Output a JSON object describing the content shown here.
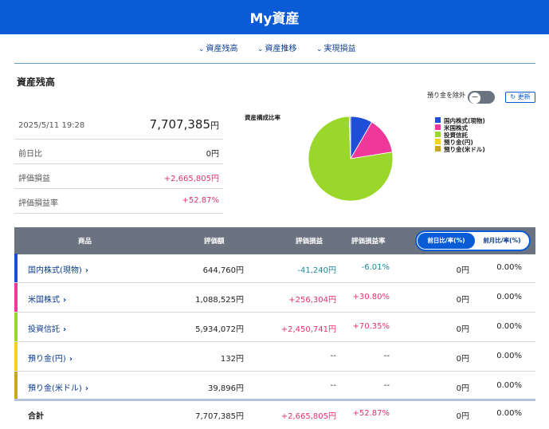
{
  "app": {
    "title": "My資産"
  },
  "subnav": [
    {
      "label": "資産残高"
    },
    {
      "label": "資産推移"
    },
    {
      "label": "実現損益"
    }
  ],
  "section_title": "資産残高",
  "controls": {
    "exclude_deposit_label": "預り金を除外",
    "refresh_label": "更新",
    "refresh_icon": "refresh-icon"
  },
  "summary": {
    "datetime": "2025/5/11 19:28",
    "total_number": "7,707,385",
    "total_unit": "円",
    "rows": [
      {
        "label": "前日比",
        "value": "0円"
      },
      {
        "label": "評価損益",
        "value": "+2,665,805円"
      },
      {
        "label": "評価損益率",
        "value": "+52.87%"
      }
    ]
  },
  "chart_data": {
    "type": "pie",
    "title": "資産構成比率",
    "categories": [
      "国内株式(現物)",
      "米国株式",
      "投資信託",
      "預り金(円)",
      "預り金(米ドル)"
    ],
    "values": [
      644760,
      1088525,
      5934072,
      132,
      39896
    ],
    "colors": [
      "#1f4fd8",
      "#f0389a",
      "#9ad72a",
      "#f2d21a",
      "#c8a718"
    ],
    "legend_position": "right"
  },
  "table": {
    "headers": [
      "商品",
      "評価額",
      "評価損益",
      "評価損益率"
    ],
    "toggle": {
      "active": "前日比/率(%)",
      "inactive": "前月比/率(%)"
    },
    "rows": [
      {
        "product": "国内株式(現物)",
        "value": "644,760円",
        "pl": "-41,240円",
        "rate": "-6.01%",
        "diff": "0円",
        "diff_rate": "0.00%",
        "color": "#1f4fd8",
        "sign": "neg"
      },
      {
        "product": "米国株式",
        "value": "1,088,525円",
        "pl": "+256,304円",
        "rate": "+30.80%",
        "diff": "0円",
        "diff_rate": "0.00%",
        "color": "#f0389a",
        "sign": "pos"
      },
      {
        "product": "投資信託",
        "value": "5,934,072円",
        "pl": "+2,450,741円",
        "rate": "+70.35%",
        "diff": "0円",
        "diff_rate": "0.00%",
        "color": "#9ad72a",
        "sign": "pos"
      },
      {
        "product": "預り金(円)",
        "value": "132円",
        "pl": "--",
        "rate": "--",
        "diff": "0円",
        "diff_rate": "0.00%",
        "color": "#f2d21a",
        "sign": "none"
      },
      {
        "product": "預り金(米ドル)",
        "value": "39,896円",
        "pl": "--",
        "rate": "--",
        "diff": "0円",
        "diff_rate": "0.00%",
        "color": "#c8a718",
        "sign": "none"
      }
    ],
    "total": {
      "label": "合計",
      "value": "7,707,385円",
      "pl": "+2,665,805円",
      "rate": "+52.87%",
      "diff": "0円",
      "diff_rate": "0.00%"
    }
  }
}
